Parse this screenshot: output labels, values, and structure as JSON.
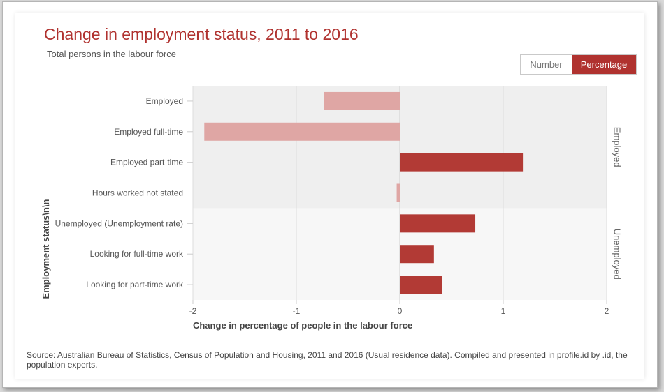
{
  "header": {
    "title": "Change in employment status, 2011 to 2016",
    "subtitle": "Total persons in the labour force"
  },
  "toggle": {
    "number_label": "Number",
    "percentage_label": "Percentage",
    "selected": "Percentage"
  },
  "colors": {
    "positive": "#b23a35",
    "negative": "#dfa6a4",
    "accent": "#b0322f",
    "band_employed": "#efefef",
    "band_unemployed": "#f7f7f7"
  },
  "chart_data": {
    "type": "bar",
    "orientation": "horizontal",
    "categories": [
      "Employed",
      "Employed full-time",
      "Employed part-time",
      "Hours worked not stated",
      "Unemployed (Unemployment rate)",
      "Looking for full-time work",
      "Looking for part-time work"
    ],
    "values": [
      -0.73,
      -1.89,
      1.19,
      -0.03,
      0.73,
      0.33,
      0.41
    ],
    "groups": [
      {
        "name": "Employed",
        "categories": [
          "Employed",
          "Employed full-time",
          "Employed part-time",
          "Hours worked not stated"
        ]
      },
      {
        "name": "Unemployed",
        "categories": [
          "Unemployed (Unemployment rate)",
          "Looking for full-time work",
          "Looking for part-time work"
        ]
      }
    ],
    "xlabel": "Change in percentage of people in the labour force",
    "ylabel": "Employment status\\n\\n",
    "xlim": [
      -2,
      2
    ],
    "xticks": [
      "-2",
      "-1",
      "0",
      "1",
      "2"
    ],
    "grid": true,
    "legend": "none"
  },
  "footer": {
    "source": "Source: Australian Bureau of Statistics, Census of Population and Housing, 2011 and 2016 (Usual residence data). Compiled and presented in profile.id by .id, the population experts."
  }
}
